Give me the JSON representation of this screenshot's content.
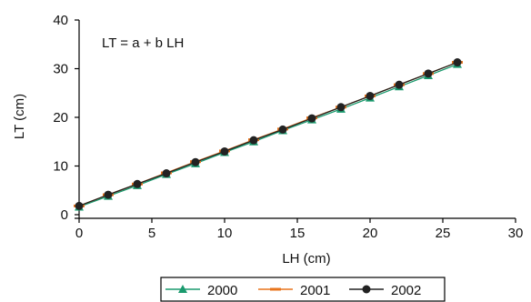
{
  "chart_data": {
    "type": "line",
    "title": "",
    "annotation": "LT = a + b LH",
    "xlabel": "LH (cm)",
    "ylabel": "LT (cm)",
    "xlim": [
      0,
      30
    ],
    "ylim": [
      0,
      40
    ],
    "xticks": [
      0,
      5,
      10,
      15,
      20,
      25,
      30
    ],
    "yticks": [
      0,
      10,
      20,
      30,
      40
    ],
    "grid": false,
    "legend_position": "bottom",
    "x": [
      0,
      2,
      4,
      6,
      8,
      10,
      12,
      14,
      16,
      18,
      20,
      22,
      24,
      26
    ],
    "series": [
      {
        "name": "2000",
        "color": "#1a9a6e",
        "marker": "triangle",
        "values": [
          1.6,
          3.8,
          6.0,
          8.3,
          10.5,
          12.8,
          15.0,
          17.3,
          19.5,
          21.7,
          24.0,
          26.3,
          28.6,
          30.9
        ]
      },
      {
        "name": "2001",
        "color": "#e8741c",
        "marker": "dash",
        "values": [
          1.8,
          4.1,
          6.3,
          8.6,
          10.9,
          13.1,
          15.4,
          17.6,
          19.9,
          22.1,
          24.4,
          26.7,
          29.0,
          31.3
        ]
      },
      {
        "name": "2002",
        "color": "#222222",
        "marker": "circle",
        "values": [
          1.8,
          4.1,
          6.3,
          8.5,
          10.8,
          13.0,
          15.3,
          17.5,
          19.8,
          22.1,
          24.4,
          26.7,
          29.0,
          31.3
        ]
      }
    ]
  }
}
